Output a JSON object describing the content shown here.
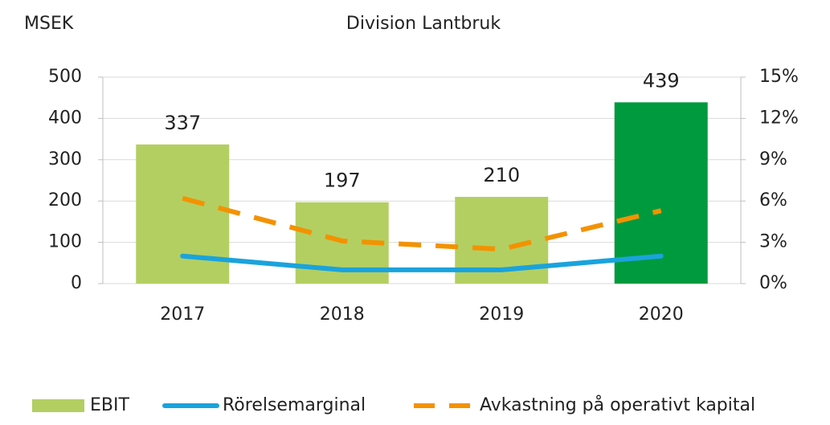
{
  "chart_data": {
    "type": "bar",
    "title": "Division Lantbruk",
    "y_label": "MSEK",
    "categories": [
      "2017",
      "2018",
      "2019",
      "2020"
    ],
    "series": [
      {
        "name": "EBIT",
        "type": "bar",
        "color": "#b3cf62",
        "colors": [
          "#b3cf62",
          "#b3cf62",
          "#b3cf62",
          "#009a3e"
        ],
        "values": [
          337,
          197,
          210,
          439
        ],
        "show_labels": true
      },
      {
        "name": "Rörelsemarginal",
        "type": "line",
        "axis": "y2",
        "color": "#1aa3dc",
        "dashed": false,
        "values": [
          2.0,
          1.0,
          1.0,
          2.0
        ]
      },
      {
        "name": "Avkastning på operativt kapital",
        "type": "line",
        "axis": "y2",
        "color": "#f39200",
        "dashed": true,
        "values": [
          6.2,
          3.1,
          2.5,
          5.3
        ]
      }
    ],
    "ylim": [
      0,
      500
    ],
    "yticks": [
      0,
      100,
      200,
      300,
      400,
      500
    ],
    "y2lim": [
      0,
      15
    ],
    "y2ticks": [
      {
        "value": 0,
        "label": "0%"
      },
      {
        "value": 3,
        "label": "3%"
      },
      {
        "value": 6,
        "label": "6%"
      },
      {
        "value": 9,
        "label": "9%"
      },
      {
        "value": 12,
        "label": "12%"
      },
      {
        "value": 15,
        "label": "15%"
      }
    ],
    "grid": true,
    "legend": "bottom"
  }
}
